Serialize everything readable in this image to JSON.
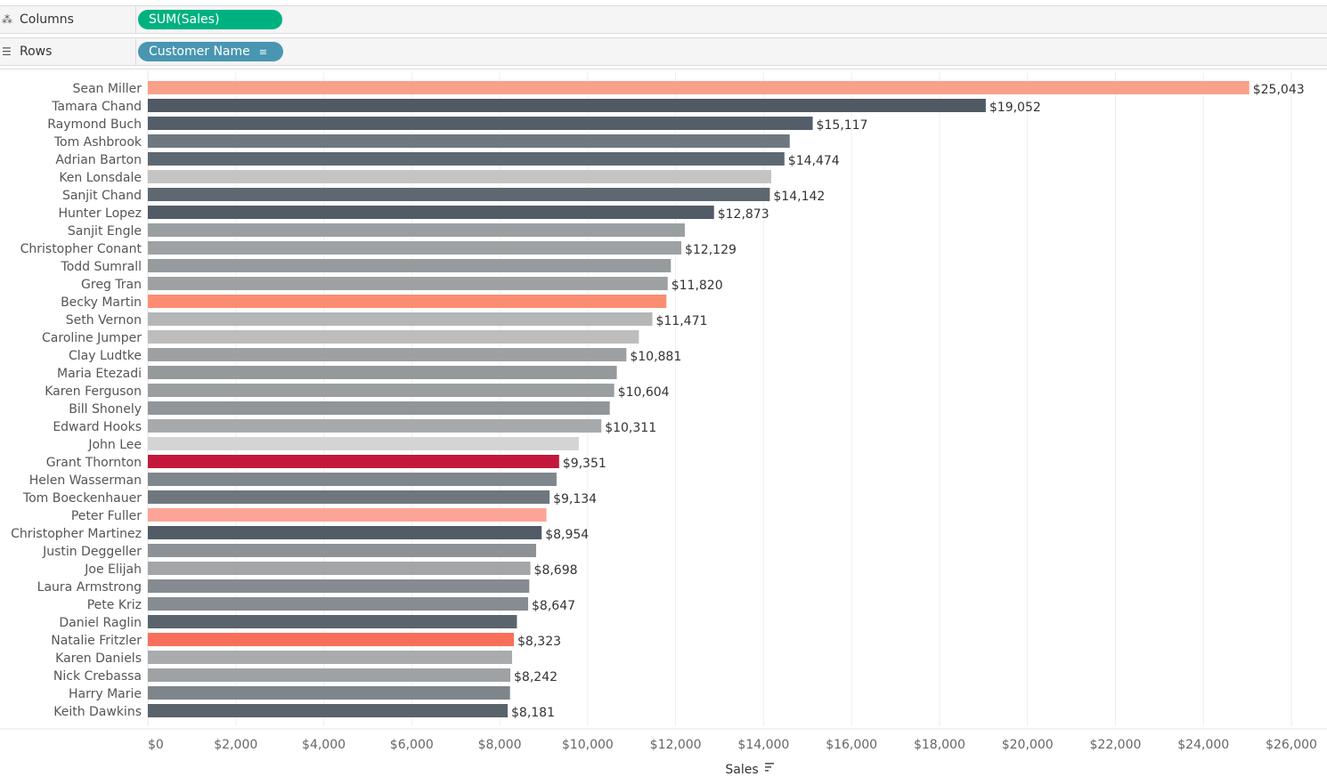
{
  "shelves": {
    "columns": {
      "label": "Columns",
      "pill": "SUM(Sales)"
    },
    "rows": {
      "label": "Rows",
      "pill": "Customer Name"
    }
  },
  "chart_data": {
    "type": "bar",
    "orientation": "horizontal",
    "xlabel": "Sales",
    "ylabel": "Customer Name",
    "xlim": [
      0,
      26000
    ],
    "x_ticks": [
      "$0",
      "$2,000",
      "$4,000",
      "$6,000",
      "$8,000",
      "$10,000",
      "$12,000",
      "$14,000",
      "$16,000",
      "$18,000",
      "$20,000",
      "$22,000",
      "$24,000",
      "$26,000"
    ],
    "tick_step": 2000,
    "grid": true,
    "categories": [
      "Sean Miller",
      "Tamara Chand",
      "Raymond Buch",
      "Tom Ashbrook",
      "Adrian Barton",
      "Ken Lonsdale",
      "Sanjit Chand",
      "Hunter Lopez",
      "Sanjit Engle",
      "Christopher Conant",
      "Todd Sumrall",
      "Greg Tran",
      "Becky Martin",
      "Seth Vernon",
      "Caroline Jumper",
      "Clay Ludtke",
      "Maria Etezadi",
      "Karen Ferguson",
      "Bill Shonely",
      "Edward Hooks",
      "John Lee",
      "Grant Thornton",
      "Helen Wasserman",
      "Tom Boeckenhauer",
      "Peter Fuller",
      "Christopher Martinez",
      "Justin Deggeller",
      "Joe Elijah",
      "Laura Armstrong",
      "Pete Kriz",
      "Daniel Raglin",
      "Natalie Fritzler",
      "Karen Daniels",
      "Nick Crebassa",
      "Harry Marie",
      "Keith Dawkins"
    ],
    "values": [
      25043,
      19052,
      15117,
      14595,
      14474,
      14175,
      14142,
      12873,
      12209,
      12129,
      11892,
      11820,
      11790,
      11471,
      11165,
      10881,
      10663,
      10604,
      10502,
      10311,
      9799,
      9351,
      9293,
      9134,
      9063,
      8954,
      8828,
      8698,
      8673,
      8647,
      8392,
      8323,
      8282,
      8242,
      8235,
      8181
    ],
    "labels": [
      "$25,043",
      "$19,052",
      "$15,117",
      "",
      "$14,474",
      "",
      "$14,142",
      "$12,873",
      "",
      "$12,129",
      "",
      "$11,820",
      "",
      "$11,471",
      "",
      "$10,881",
      "",
      "$10,604",
      "",
      "$10,311",
      "",
      "$9,351",
      "",
      "$9,134",
      "",
      "$8,954",
      "",
      "$8,698",
      "",
      "$8,647",
      "",
      "$8,323",
      "",
      "$8,242",
      "",
      "$8,181"
    ],
    "colors": [
      "#f9a08b",
      "#4f5a65",
      "#545e69",
      "#6e7880",
      "#5e6871",
      "#c4c4c4",
      "#5e6871",
      "#525c66",
      "#9a9fa2",
      "#9ea2a4",
      "#969b9e",
      "#9da1a4",
      "#fb8e72",
      "#b4b6b7",
      "#bdbdbd",
      "#9da1a4",
      "#94999c",
      "#9a9ea1",
      "#8f9599",
      "#a7aaac",
      "#d4d4d4",
      "#c3183c",
      "#7f868c",
      "#6f777e",
      "#fca596",
      "#525c66",
      "#8c9296",
      "#a3a6a8",
      "#858b90",
      "#868c91",
      "#5a646d",
      "#f8705c",
      "#a9acae",
      "#9ea2a5",
      "#7f868b",
      "#59636c"
    ]
  }
}
